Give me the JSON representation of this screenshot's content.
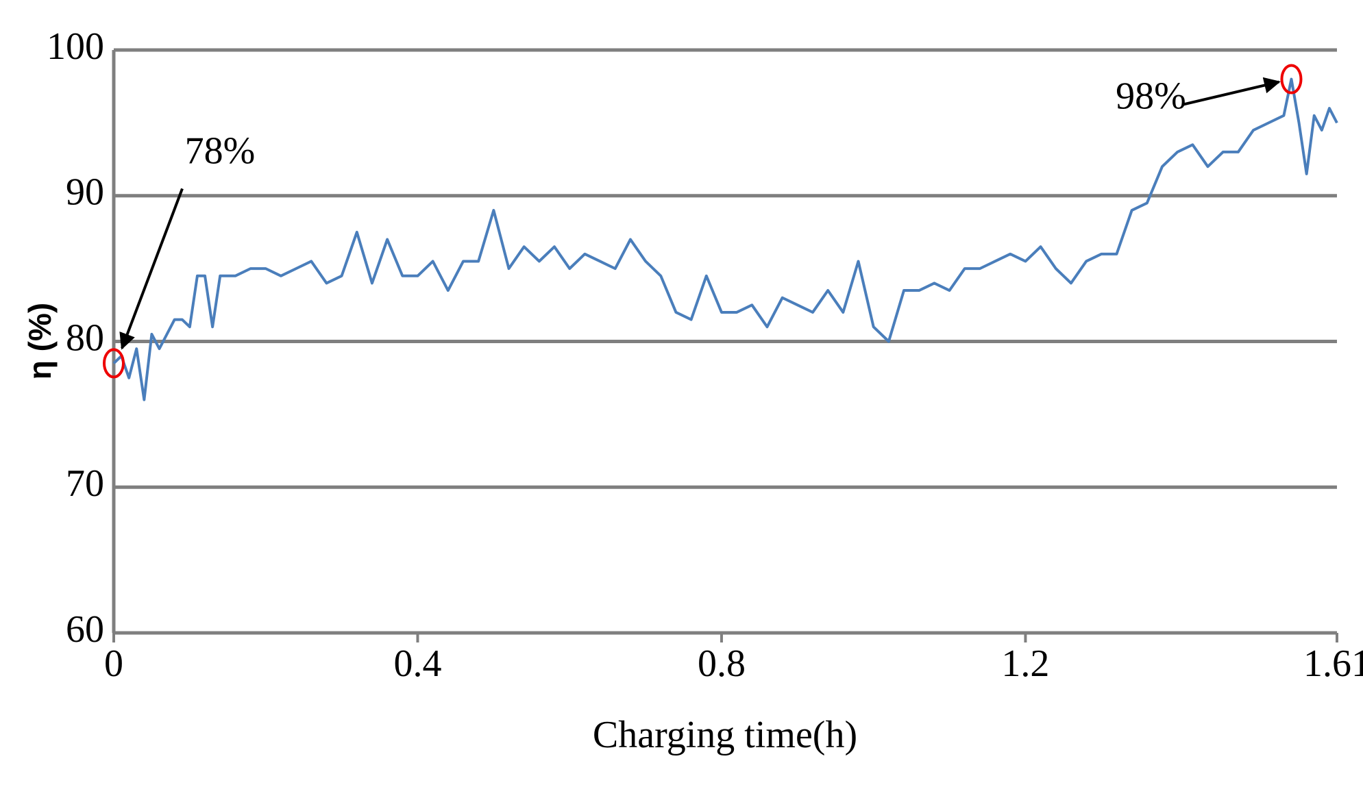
{
  "chart_data": {
    "type": "line",
    "x_label": "Charging time(h)",
    "y_label": "η (%)",
    "x": [
      0,
      0.01,
      0.02,
      0.03,
      0.04,
      0.05,
      0.06,
      0.07,
      0.08,
      0.09,
      0.1,
      0.11,
      0.12,
      0.13,
      0.14,
      0.16,
      0.18,
      0.2,
      0.22,
      0.24,
      0.26,
      0.28,
      0.3,
      0.32,
      0.34,
      0.36,
      0.38,
      0.4,
      0.42,
      0.44,
      0.46,
      0.48,
      0.5,
      0.52,
      0.54,
      0.56,
      0.58,
      0.6,
      0.62,
      0.64,
      0.66,
      0.68,
      0.7,
      0.72,
      0.74,
      0.76,
      0.78,
      0.8,
      0.82,
      0.84,
      0.86,
      0.88,
      0.9,
      0.92,
      0.94,
      0.96,
      0.98,
      1.0,
      1.02,
      1.04,
      1.06,
      1.08,
      1.1,
      1.12,
      1.14,
      1.16,
      1.18,
      1.2,
      1.22,
      1.24,
      1.26,
      1.28,
      1.3,
      1.32,
      1.34,
      1.36,
      1.38,
      1.4,
      1.42,
      1.44,
      1.46,
      1.48,
      1.5,
      1.52,
      1.54,
      1.55,
      1.56,
      1.57,
      1.58,
      1.59,
      1.6,
      1.61
    ],
    "values": [
      78.5,
      79,
      77.5,
      79.5,
      76,
      80.5,
      79.5,
      80.5,
      81.5,
      81.5,
      81,
      84.5,
      84.5,
      81,
      84.5,
      84.5,
      85,
      85,
      84.5,
      85,
      85.5,
      84,
      84.5,
      87.5,
      84,
      87,
      84.5,
      84.5,
      85.5,
      83.5,
      85.5,
      85.5,
      89,
      85,
      86.5,
      85.5,
      86.5,
      85,
      86,
      85.5,
      85,
      87,
      85.5,
      84.5,
      82,
      81.5,
      84.5,
      82,
      82,
      82.5,
      81,
      83,
      82.5,
      82,
      83.5,
      82,
      85.5,
      81,
      80,
      83.5,
      83.5,
      84,
      83.5,
      85,
      85,
      85.5,
      86,
      85.5,
      86.5,
      85,
      84,
      85.5,
      86,
      86,
      89,
      89.5,
      92,
      93,
      93.5,
      92,
      93,
      93,
      94.5,
      95,
      95.5,
      98,
      95,
      91.5,
      95.5,
      94.5,
      96,
      95
    ],
    "color": "#4a7ebb",
    "xlim": [
      0,
      1.61
    ],
    "xticks": [
      0,
      0.4,
      0.8,
      1.2,
      1.61
    ],
    "ylim": [
      60,
      100
    ],
    "yticks": [
      60,
      70,
      80,
      90,
      100
    ],
    "grid": true,
    "annotations": [
      {
        "text": "78%",
        "x": 0,
        "y": 78.5
      },
      {
        "text": "98%",
        "x": 1.55,
        "y": 98
      }
    ]
  }
}
